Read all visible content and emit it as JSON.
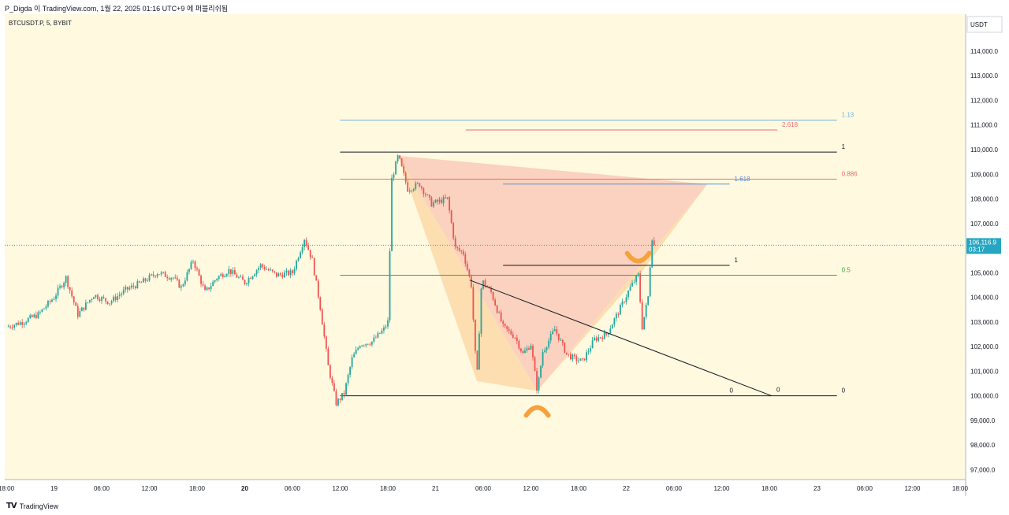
{
  "header": {
    "publisher_line": "P_Digda 이 TradingView.com, 1월 22, 2025 01:16 UTC+9 에 퍼블리쉬됨"
  },
  "symbol_info": "BTCUSDT.P, 5, BYBIT",
  "currency_label": "USDT",
  "brand": {
    "mark": "TV",
    "name": "TradingView"
  },
  "colors": {
    "background": "#fff9e0",
    "up_candle": "#26a69a",
    "down_candle": "#ef5350",
    "price_badge": "#26a6c2",
    "pattern_fill_a": "#f6b2a4",
    "pattern_fill_b": "#f9c98b",
    "marker": "#f6a23c"
  },
  "chart_data": {
    "type": "candlestick",
    "symbol": "BTCUSDT.P",
    "interval": "5",
    "exchange": "BYBIT",
    "ylim": [
      96600,
      115500
    ],
    "y_ticks": [
      "114,000.0",
      "113,000.0",
      "112,000.0",
      "111,000.0",
      "110,000.0",
      "109,000.0",
      "108,000.0",
      "107,000.0",
      "106,000.0",
      "105,000.0",
      "104,000.0",
      "103,000.0",
      "102,000.0",
      "101,000.0",
      "100,000.0",
      "99,000.0",
      "98,000.0",
      "97,000.0"
    ],
    "x_ticks": [
      "18:00",
      "19",
      "06:00",
      "12:00",
      "18:00",
      "20",
      "06:00",
      "12:00",
      "18:00",
      "21",
      "06:00",
      "12:00",
      "18:00",
      "22",
      "06:00",
      "12:00",
      "18:00",
      "23",
      "06:00",
      "12:00",
      "18:00"
    ],
    "x_tick_hours": [
      0,
      6,
      12,
      18,
      24,
      30,
      36,
      42,
      48,
      54,
      60,
      66,
      72,
      78,
      84,
      90,
      96,
      102,
      108,
      114,
      120
    ],
    "bold_x_ticks": [
      "20"
    ],
    "last_price": "106,116.9",
    "countdown": "03:17",
    "price_path": [
      [
        0.0,
        102800
      ],
      [
        2.0,
        103000
      ],
      [
        4.0,
        103300
      ],
      [
        6.0,
        104000
      ],
      [
        7.5,
        104800
      ],
      [
        9.0,
        103300
      ],
      [
        11.0,
        104100
      ],
      [
        13.0,
        103800
      ],
      [
        15.0,
        104300
      ],
      [
        17.0,
        104600
      ],
      [
        19.0,
        105000
      ],
      [
        21.0,
        104800
      ],
      [
        22.0,
        104400
      ],
      [
        23.5,
        105500
      ],
      [
        25.0,
        104200
      ],
      [
        26.5,
        104800
      ],
      [
        28.0,
        105100
      ],
      [
        30.0,
        104600
      ],
      [
        32.0,
        105300
      ],
      [
        34.0,
        104900
      ],
      [
        36.0,
        105000
      ],
      [
        37.5,
        106400
      ],
      [
        38.5,
        105500
      ],
      [
        39.5,
        103600
      ],
      [
        40.5,
        101200
      ],
      [
        41.5,
        99700
      ],
      [
        42.5,
        100100
      ],
      [
        43.5,
        101500
      ],
      [
        44.5,
        102100
      ],
      [
        46.0,
        102200
      ],
      [
        47.5,
        102700
      ],
      [
        48.0,
        103000
      ],
      [
        48.5,
        108800
      ],
      [
        49.3,
        109750
      ],
      [
        50.5,
        108400
      ],
      [
        52.0,
        108600
      ],
      [
        53.5,
        107800
      ],
      [
        55.5,
        108000
      ],
      [
        56.5,
        106000
      ],
      [
        57.5,
        105800
      ],
      [
        58.5,
        104500
      ],
      [
        59.2,
        100600
      ],
      [
        59.8,
        104700
      ],
      [
        61.0,
        104200
      ],
      [
        62.5,
        102800
      ],
      [
        64.0,
        102400
      ],
      [
        65.0,
        101700
      ],
      [
        66.0,
        102100
      ],
      [
        66.8,
        100200
      ],
      [
        67.5,
        101800
      ],
      [
        69.0,
        102700
      ],
      [
        70.5,
        101700
      ],
      [
        71.5,
        101500
      ],
      [
        72.5,
        101400
      ],
      [
        74.0,
        102300
      ],
      [
        75.5,
        102500
      ],
      [
        77.0,
        103400
      ],
      [
        78.5,
        104400
      ],
      [
        79.5,
        104900
      ],
      [
        80.0,
        102800
      ],
      [
        80.8,
        104100
      ],
      [
        81.2,
        106500
      ],
      [
        81.5,
        106117
      ]
    ],
    "x_range_hours": [
      -0.2,
      120.6
    ],
    "harmonic_pattern": {
      "points": [
        [
          49.3,
          109750
        ],
        [
          59.2,
          100600
        ],
        [
          66.8,
          100200
        ],
        [
          80.1,
          105100
        ],
        [
          88.2,
          108600
        ]
      ],
      "leg_fills": [
        "#f6b2a4",
        "#f9c98b"
      ]
    },
    "fib_levels": [
      {
        "label": "1.13",
        "price": 111200,
        "color": "#74b4dc",
        "x_start_h": 42.0,
        "x_end_h": 104.5
      },
      {
        "label": "2.618",
        "price": 110800,
        "color": "#ef6b6b",
        "x_start_h": 57.8,
        "x_end_h": 97.0
      },
      {
        "label": "1",
        "price": 109900,
        "color": "#131722",
        "x_start_h": 42.0,
        "x_end_h": 104.5
      },
      {
        "label": "0.886",
        "price": 108800,
        "color": "#ef6b6b",
        "x_start_h": 42.0,
        "x_end_h": 104.5
      },
      {
        "label": "1.618",
        "price": 108600,
        "color": "#5b8fd3",
        "x_start_h": 62.5,
        "x_end_h": 91.0
      },
      {
        "label": "1",
        "price": 105300,
        "color": "#131722",
        "x_start_h": 62.5,
        "x_end_h": 91.0
      },
      {
        "label": "0.5",
        "price": 104900,
        "color": "#43a047",
        "x_start_h": 42.0,
        "x_end_h": 104.5
      },
      {
        "label": "0",
        "price": 100000,
        "color": "#131722",
        "x_start_h": 42.0,
        "x_end_h": 104.5
      }
    ],
    "trendline": {
      "from": [
        58.3,
        104700
      ],
      "to": [
        96.3,
        100000
      ],
      "label": "0",
      "color": "#131722"
    },
    "extra_label_0": {
      "label": "0",
      "x_h": 91.0,
      "price": 100200
    },
    "markers": [
      {
        "type": "cap",
        "x_h": 66.8,
        "price": 99400,
        "color": "#f6a23c"
      },
      {
        "type": "cup",
        "x_h": 79.5,
        "price": 105600,
        "color": "#f6a23c"
      }
    ]
  }
}
